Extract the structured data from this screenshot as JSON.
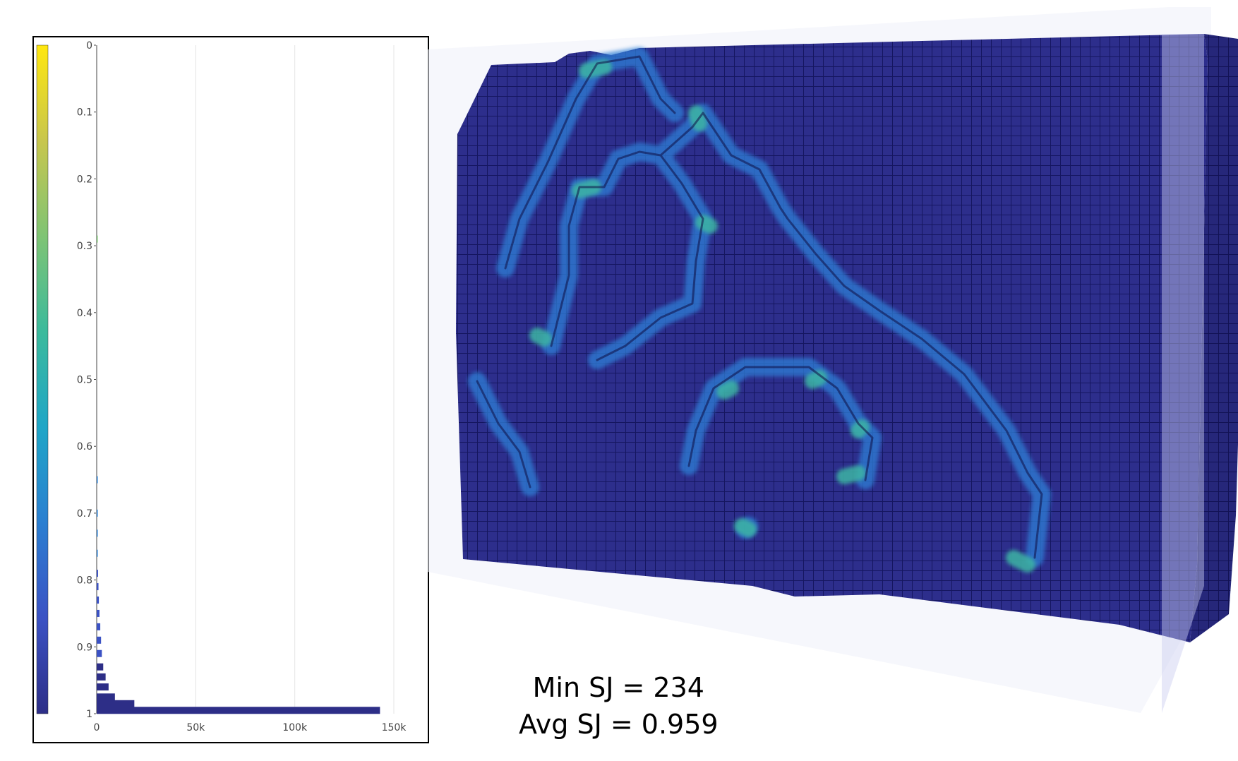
{
  "chart_data": {
    "type": "bar",
    "orientation": "horizontal",
    "title": "",
    "xlabel": "",
    "ylabel": "",
    "y_ticks": [
      "0",
      "0.1",
      "0.2",
      "0.3",
      "0.4",
      "0.5",
      "0.6",
      "0.7",
      "0.8",
      "0.9",
      "1"
    ],
    "x_ticks": [
      "0",
      "50k",
      "100k",
      "150k"
    ],
    "xlim": [
      0,
      150000
    ],
    "ylim": [
      0,
      1
    ],
    "y_inverted": true,
    "grid": "vertical",
    "colorscale": [
      "#2d2e87",
      "#3b52c4",
      "#2b7fd1",
      "#1fa6c7",
      "#3cba9c",
      "#7fc474",
      "#c8c64d",
      "#ffe70f"
    ],
    "bins": [
      {
        "y": 0.29,
        "count": 150
      },
      {
        "y": 0.65,
        "count": 150
      },
      {
        "y": 0.7,
        "count": 300
      },
      {
        "y": 0.73,
        "count": 350
      },
      {
        "y": 0.76,
        "count": 500
      },
      {
        "y": 0.79,
        "count": 700
      },
      {
        "y": 0.81,
        "count": 900
      },
      {
        "y": 0.83,
        "count": 1100
      },
      {
        "y": 0.85,
        "count": 1400
      },
      {
        "y": 0.87,
        "count": 1800
      },
      {
        "y": 0.89,
        "count": 2200
      },
      {
        "y": 0.91,
        "count": 2600
      },
      {
        "y": 0.93,
        "count": 3300
      },
      {
        "y": 0.945,
        "count": 4500
      },
      {
        "y": 0.96,
        "count": 6000
      },
      {
        "y": 0.975,
        "count": 9200
      },
      {
        "y": 0.985,
        "count": 19000
      },
      {
        "y": 0.995,
        "count": 143000
      }
    ]
  },
  "stats": {
    "min_sj": "Min SJ = 234",
    "avg_sj": "Avg SJ = 0.959"
  }
}
